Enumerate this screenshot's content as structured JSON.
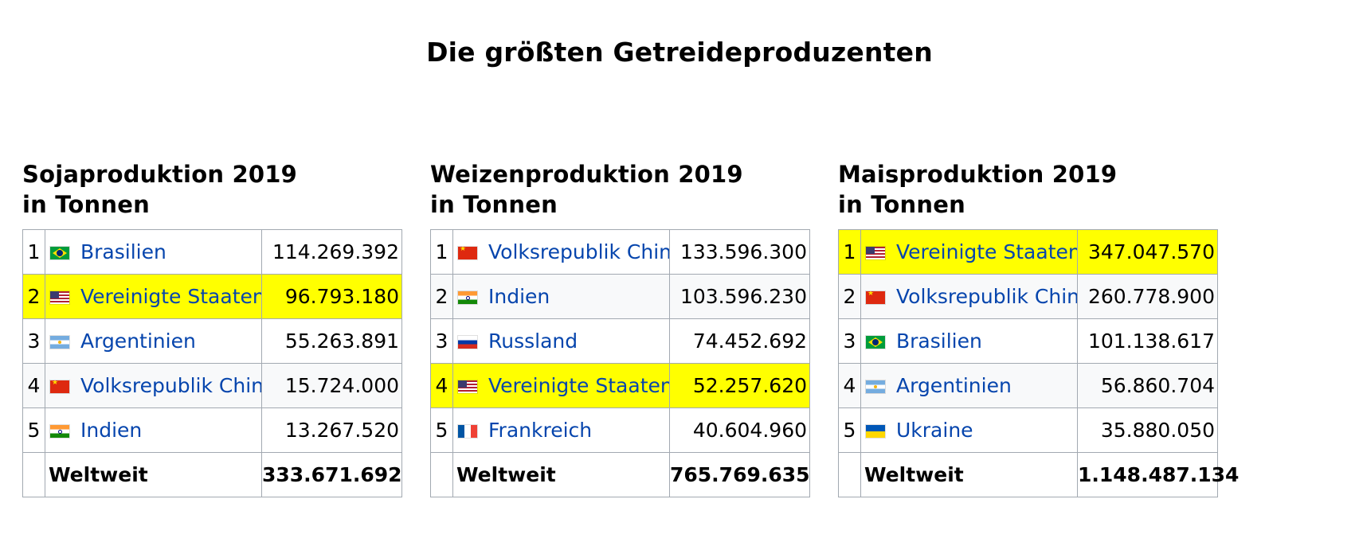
{
  "page_title": "Die größten Getreideproduzenten",
  "tables": [
    {
      "heading_line1": "Sojaproduktion 2019",
      "heading_line2": "in Tonnen",
      "rows": [
        {
          "rank": "1",
          "country": "Brasilien",
          "flag": "brazil-flag-icon",
          "value": "114.269.392",
          "highlighted": false
        },
        {
          "rank": "2",
          "country": "Vereinigte Staaten",
          "flag": "usa-flag-icon",
          "value": "96.793.180",
          "highlighted": true
        },
        {
          "rank": "3",
          "country": "Argentinien",
          "flag": "argentina-flag-icon",
          "value": "55.263.891",
          "highlighted": false
        },
        {
          "rank": "4",
          "country": "Volksrepublik China",
          "flag": "china-flag-icon",
          "value": "15.724.000",
          "highlighted": false
        },
        {
          "rank": "5",
          "country": "Indien",
          "flag": "india-flag-icon",
          "value": "13.267.520",
          "highlighted": false
        }
      ],
      "total_label": "Weltweit",
      "total_value": "333.671.692"
    },
    {
      "heading_line1": "Weizenproduktion 2019",
      "heading_line2": "in Tonnen",
      "rows": [
        {
          "rank": "1",
          "country": "Volksrepublik China",
          "flag": "china-flag-icon",
          "value": "133.596.300",
          "highlighted": false
        },
        {
          "rank": "2",
          "country": "Indien",
          "flag": "india-flag-icon",
          "value": "103.596.230",
          "highlighted": false
        },
        {
          "rank": "3",
          "country": "Russland",
          "flag": "russia-flag-icon",
          "value": "74.452.692",
          "highlighted": false
        },
        {
          "rank": "4",
          "country": "Vereinigte Staaten",
          "flag": "usa-flag-icon",
          "value": "52.257.620",
          "highlighted": true
        },
        {
          "rank": "5",
          "country": "Frankreich",
          "flag": "france-flag-icon",
          "value": "40.604.960",
          "highlighted": false
        }
      ],
      "total_label": "Weltweit",
      "total_value": "765.769.635"
    },
    {
      "heading_line1": "Maisproduktion 2019",
      "heading_line2": "in Tonnen",
      "rows": [
        {
          "rank": "1",
          "country": "Vereinigte Staaten",
          "flag": "usa-flag-icon",
          "value": "347.047.570",
          "highlighted": true
        },
        {
          "rank": "2",
          "country": "Volksrepublik China",
          "flag": "china-flag-icon",
          "value": "260.778.900",
          "highlighted": false
        },
        {
          "rank": "3",
          "country": "Brasilien",
          "flag": "brazil-flag-icon",
          "value": "101.138.617",
          "highlighted": false
        },
        {
          "rank": "4",
          "country": "Argentinien",
          "flag": "argentina-flag-icon",
          "value": "56.860.704",
          "highlighted": false
        },
        {
          "rank": "5",
          "country": "Ukraine",
          "flag": "ukraine-flag-icon",
          "value": "35.880.050",
          "highlighted": false
        }
      ],
      "total_label": "Weltweit",
      "total_value": "1.148.487.134"
    }
  ],
  "colors": {
    "highlight": "#ffff00",
    "link": "#0645ad",
    "border": "#a2a9b1",
    "row_alt": "#f8f9fa"
  }
}
